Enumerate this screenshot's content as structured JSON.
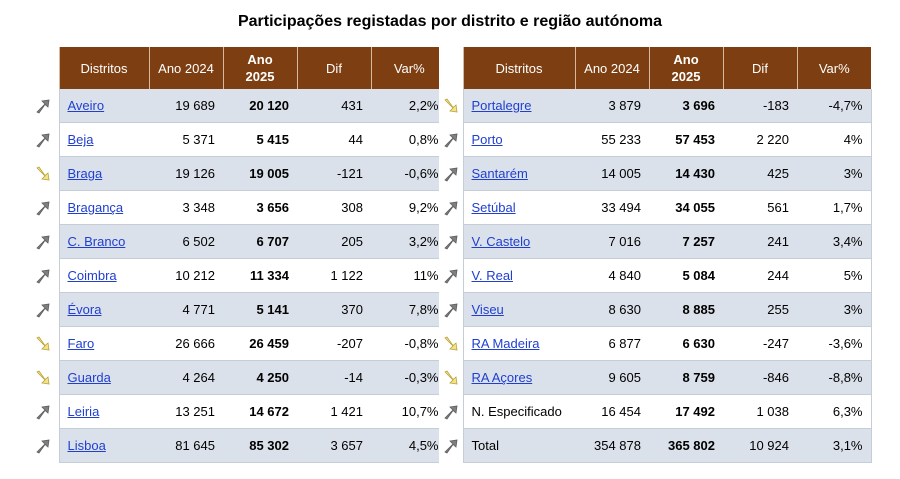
{
  "title": "Participações registadas por distrito e região autónoma",
  "headers": {
    "districts": "Distritos",
    "year2024": "Ano 2024",
    "year2025": "Ano 2025",
    "diff": "Dif",
    "var": "Var%"
  },
  "colors": {
    "header_bg": "#7d3f12",
    "row_alt": "#dbe1ea",
    "link": "#1f3fd1",
    "arrow_up": "#7f7f7f",
    "arrow_down": "#f2e28a"
  },
  "left_rows": [
    {
      "name": "Aveiro",
      "link": true,
      "y2024": "19 689",
      "y2025": "20 120",
      "dif": "431",
      "var": "2,2%",
      "trend": "up"
    },
    {
      "name": "Beja",
      "link": true,
      "y2024": "5 371",
      "y2025": "5 415",
      "dif": "44",
      "var": "0,8%",
      "trend": "up"
    },
    {
      "name": "Braga",
      "link": true,
      "y2024": "19 126",
      "y2025": "19 005",
      "dif": "-121",
      "var": "-0,6%",
      "trend": "down"
    },
    {
      "name": "Bragança",
      "link": true,
      "y2024": "3 348",
      "y2025": "3 656",
      "dif": "308",
      "var": "9,2%",
      "trend": "up"
    },
    {
      "name": "C. Branco",
      "link": true,
      "y2024": "6 502",
      "y2025": "6 707",
      "dif": "205",
      "var": "3,2%",
      "trend": "up"
    },
    {
      "name": "Coimbra",
      "link": true,
      "y2024": "10 212",
      "y2025": "11 334",
      "dif": "1 122",
      "var": "11%",
      "trend": "up"
    },
    {
      "name": "Évora",
      "link": true,
      "y2024": "4 771",
      "y2025": "5 141",
      "dif": "370",
      "var": "7,8%",
      "trend": "up"
    },
    {
      "name": "Faro",
      "link": true,
      "y2024": "26 666",
      "y2025": "26 459",
      "dif": "-207",
      "var": "-0,8%",
      "trend": "down"
    },
    {
      "name": "Guarda",
      "link": true,
      "y2024": "4 264",
      "y2025": "4 250",
      "dif": "-14",
      "var": "-0,3%",
      "trend": "down"
    },
    {
      "name": "Leiria",
      "link": true,
      "y2024": "13 251",
      "y2025": "14 672",
      "dif": "1 421",
      "var": "10,7%",
      "trend": "up"
    },
    {
      "name": "Lisboa",
      "link": true,
      "y2024": "81 645",
      "y2025": "85 302",
      "dif": "3 657",
      "var": "4,5%",
      "trend": "up"
    }
  ],
  "right_rows": [
    {
      "name": "Portalegre",
      "link": true,
      "y2024": "3 879",
      "y2025": "3 696",
      "dif": "-183",
      "var": "-4,7%",
      "trend": "down"
    },
    {
      "name": "Porto",
      "link": true,
      "y2024": "55 233",
      "y2025": "57 453",
      "dif": "2 220",
      "var": "4%",
      "trend": "up"
    },
    {
      "name": "Santarém",
      "link": true,
      "y2024": "14 005",
      "y2025": "14 430",
      "dif": "425",
      "var": "3%",
      "trend": "up"
    },
    {
      "name": "Setúbal",
      "link": true,
      "y2024": "33 494",
      "y2025": "34 055",
      "dif": "561",
      "var": "1,7%",
      "trend": "up"
    },
    {
      "name": "V. Castelo",
      "link": true,
      "y2024": "7 016",
      "y2025": "7 257",
      "dif": "241",
      "var": "3,4%",
      "trend": "up"
    },
    {
      "name": "V. Real",
      "link": true,
      "y2024": "4 840",
      "y2025": "5 084",
      "dif": "244",
      "var": "5%",
      "trend": "up"
    },
    {
      "name": "Viseu",
      "link": true,
      "y2024": "8 630",
      "y2025": "8 885",
      "dif": "255",
      "var": "3%",
      "trend": "up"
    },
    {
      "name": "RA Madeira",
      "link": true,
      "y2024": "6 877",
      "y2025": "6 630",
      "dif": "-247",
      "var": "-3,6%",
      "trend": "down"
    },
    {
      "name": "RA Açores",
      "link": true,
      "y2024": "9 605",
      "y2025": "8 759",
      "dif": "-846",
      "var": "-8,8%",
      "trend": "down"
    },
    {
      "name": "N. Especificado",
      "link": false,
      "y2024": "16 454",
      "y2025": "17 492",
      "dif": "1 038",
      "var": "6,3%",
      "trend": "up"
    },
    {
      "name": "Total",
      "link": false,
      "y2024": "354 878",
      "y2025": "365 802",
      "dif": "10 924",
      "var": "3,1%",
      "trend": "up"
    }
  ]
}
